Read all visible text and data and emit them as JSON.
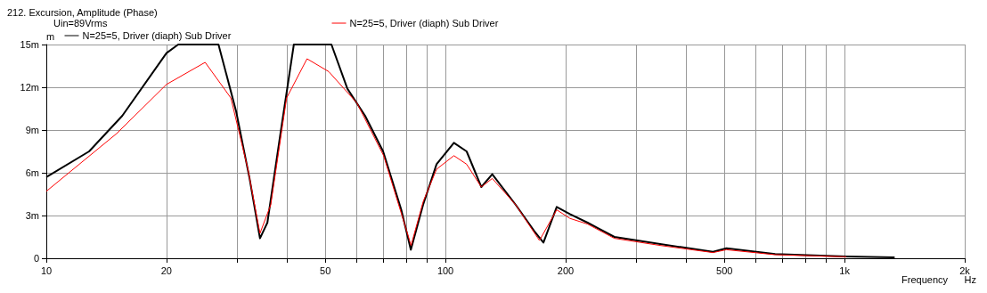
{
  "chart_data": {
    "type": "line",
    "title": "212. Excursion, Amplitude (Phase)",
    "xlabel": "Frequency",
    "ylabel": "m",
    "annotations": [
      "Uin=89Vrms",
      "Hz"
    ],
    "log": "x",
    "grid": true,
    "legend": "top",
    "line_style": "solid",
    "xlim": [
      10,
      2000
    ],
    "ylim": [
      0,
      15
    ],
    "xticks": [
      10,
      {
        "value": 20,
        "label": "20"
      },
      {
        "value": 30,
        "label": null
      },
      {
        "value": 40,
        "label": null
      },
      50,
      {
        "value": 60,
        "label": null
      },
      {
        "value": 70,
        "label": null
      },
      {
        "value": 80,
        "label": null
      },
      {
        "value": 90,
        "label": null
      },
      100,
      200,
      {
        "value": 300,
        "label": null
      },
      {
        "value": 400,
        "label": null
      },
      500,
      {
        "value": 600,
        "label": null
      },
      {
        "value": 700,
        "label": null
      },
      {
        "value": 800,
        "label": null
      },
      {
        "value": 900,
        "label": null
      },
      {
        "value": 1000,
        "label": "1k"
      },
      {
        "value": 2000,
        "label": "2k"
      }
    ],
    "yticks": [
      0,
      {
        "value": 3,
        "label": "3m"
      },
      {
        "value": 6,
        "label": "6m"
      },
      {
        "value": 9,
        "label": "9m"
      },
      {
        "value": 12,
        "label": "12m"
      },
      {
        "value": 15,
        "label": "15m"
      }
    ],
    "series": [
      {
        "name": "N=25=5, Driver (diaph) Sub Driver",
        "color": "#000000",
        "x": [
          10,
          12.8,
          15.5,
          20,
          21.4,
          27,
          29.9,
          32.3,
          34.3,
          35.8,
          38.6,
          41.7,
          51.8,
          56.8,
          62.9,
          69.8,
          77.5,
          81.9,
          87.9,
          95,
          105,
          113,
          123,
          131,
          150,
          167,
          176,
          190,
          205,
          227,
          265,
          345,
          468,
          506,
          670,
          1010,
          1335
        ],
        "values": [
          5.7,
          7.5,
          10,
          14.4,
          15,
          15,
          10.3,
          5.6,
          1.4,
          2.5,
          8.75,
          15,
          15,
          11.9,
          10,
          7.5,
          3.4,
          0.6,
          3.75,
          6.6,
          8.1,
          7.5,
          5,
          5.9,
          3.75,
          1.9,
          1.1,
          3.6,
          3.1,
          2.5,
          1.5,
          1,
          0.45,
          0.7,
          0.3,
          0.12,
          0.06
        ]
      },
      {
        "name": "N=25=5, Driver (diaph) Sub Driver",
        "color": "#ff0000",
        "x": [
          10,
          15,
          20,
          25,
          29,
          32,
          34.3,
          36.5,
          40,
          45,
          51,
          60,
          70,
          80,
          82,
          88,
          95,
          105,
          113,
          123,
          131,
          150,
          172,
          190,
          205,
          227,
          265,
          345,
          468,
          506,
          670,
          1010
        ],
        "values": [
          4.7,
          8.75,
          12.2,
          13.75,
          11.25,
          6.25,
          1.75,
          3.75,
          11.25,
          14,
          13.1,
          10.9,
          7.2,
          1.9,
          0.9,
          4,
          6.25,
          7.2,
          6.6,
          5,
          5.6,
          3.75,
          1.25,
          3.4,
          2.8,
          2.4,
          1.4,
          0.9,
          0.4,
          0.6,
          0.25,
          0.1
        ]
      }
    ]
  }
}
